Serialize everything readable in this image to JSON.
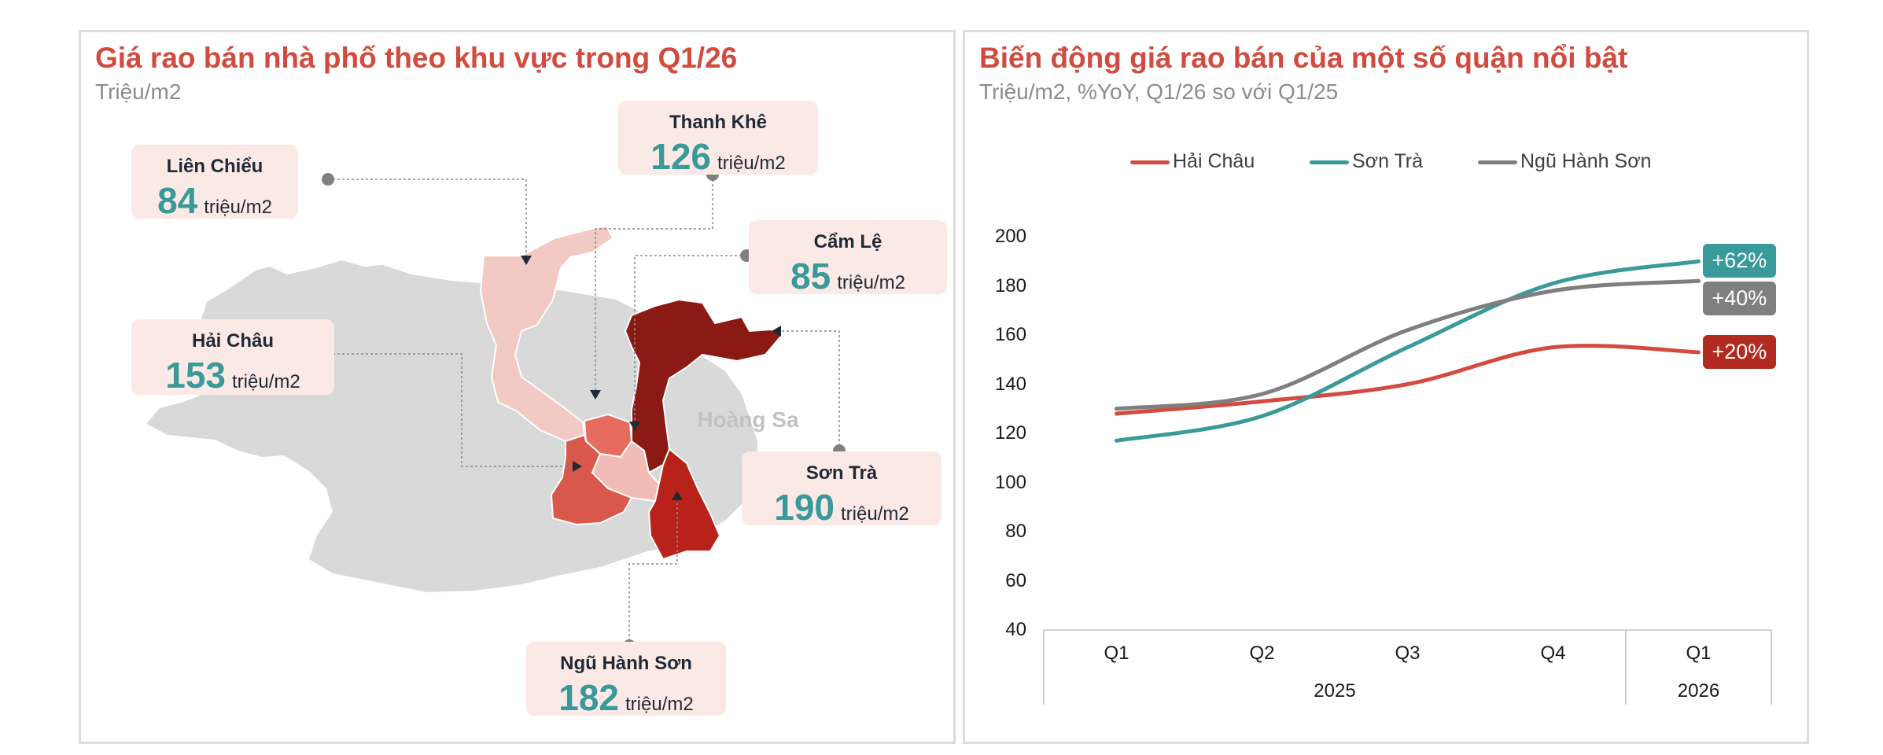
{
  "map_panel": {
    "title": "Giá rao bán nhà phố theo khu vực trong Q1/26",
    "subtitle": "Triệu/m2",
    "sea_label": "Hoàng Sa",
    "unit": "triệu/m2",
    "districts": [
      {
        "key": "lien_chieu",
        "name": "Liên Chiểu",
        "value": "84",
        "color": "#f3c9c3"
      },
      {
        "key": "thanh_khe",
        "name": "Thanh Khê",
        "value": "126",
        "color": "#e86b5f"
      },
      {
        "key": "cam_le",
        "name": "Cẩm Lệ",
        "value": "85",
        "color": "#f1bcb5"
      },
      {
        "key": "hai_chau",
        "name": "Hải Châu",
        "value": "153",
        "color": "#d9584c"
      },
      {
        "key": "son_tra",
        "name": "Sơn Trà",
        "value": "190",
        "color": "#8b1a14"
      },
      {
        "key": "ngu_hanh_son",
        "name": "Ngũ  Hành Sơn",
        "value": "182",
        "color": "#b8221a"
      }
    ]
  },
  "line_panel": {
    "title": "Biến động giá rao bán của một số quận nổi bật",
    "subtitle": "Triệu/m2, %YoY, Q1/26 so với Q1/25"
  },
  "chart_data": [
    {
      "type": "map",
      "title": "Giá rao bán nhà phố theo khu vực trong Q1/26",
      "subtitle": "Triệu/m2",
      "categories": [
        "Liên Chiểu",
        "Thanh Khê",
        "Cẩm Lệ",
        "Hải Châu",
        "Sơn Trà",
        "Ngũ  Hành Sơn"
      ],
      "values": [
        84,
        126,
        85,
        153,
        190,
        182
      ]
    },
    {
      "type": "line",
      "title": "Biến động giá rao bán của một số quận nổi bật",
      "subtitle": "Triệu/m2, %YoY, Q1/26 so với Q1/25",
      "categories": [
        "Q1",
        "Q2",
        "Q3",
        "Q4",
        "Q1"
      ],
      "groups": [
        {
          "label": "2025",
          "span": 4
        },
        {
          "label": "2026",
          "span": 1
        }
      ],
      "ylim": [
        40,
        200
      ],
      "yticks": [
        40,
        60,
        80,
        100,
        120,
        140,
        160,
        180,
        200
      ],
      "grid": false,
      "legend": "top",
      "series": [
        {
          "name": "Hải Châu",
          "color": "#d24b3e",
          "values": [
            128,
            133,
            140,
            155,
            153
          ],
          "end_label": "+20%",
          "label_color": "#b22a20"
        },
        {
          "name": "Sơn Trà",
          "color": "#3a9a9a",
          "values": [
            117,
            127,
            155,
            181,
            190
          ],
          "end_label": "+62%",
          "label_color": "#3a9a9a"
        },
        {
          "name": "Ngũ Hành Sơn",
          "color": "#7f7f7f",
          "values": [
            130,
            136,
            162,
            178,
            182
          ],
          "end_label": "+40%",
          "label_color": "#7f7f7f"
        }
      ]
    }
  ]
}
